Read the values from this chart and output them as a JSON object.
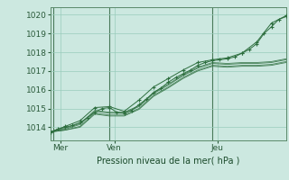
{
  "title": "",
  "xlabel": "Pression niveau de la mer( hPa )",
  "bg_color": "#cce8e0",
  "grid_color": "#99ccbb",
  "line_color": "#2d6e3e",
  "xlim": [
    0,
    96
  ],
  "ylim": [
    1013.3,
    1020.4
  ],
  "yticks": [
    1014,
    1015,
    1016,
    1017,
    1018,
    1019,
    1020
  ],
  "day_labels": [
    [
      "Mer",
      4
    ],
    [
      "Ven",
      26
    ],
    [
      "Jeu",
      68
    ]
  ],
  "day_vlines": [
    1,
    24,
    66
  ],
  "series": [
    [
      0,
      1013.75,
      3,
      1013.9,
      6,
      1014.0,
      9,
      1014.1,
      12,
      1014.25,
      15,
      1014.5,
      18,
      1014.8,
      21,
      1015.0,
      24,
      1015.05,
      27,
      1014.8,
      30,
      1014.75,
      33,
      1014.9,
      36,
      1015.2,
      39,
      1015.5,
      42,
      1015.85,
      45,
      1016.1,
      48,
      1016.4,
      51,
      1016.65,
      54,
      1016.85,
      57,
      1017.05,
      60,
      1017.3,
      63,
      1017.45,
      66,
      1017.55,
      69,
      1017.6,
      72,
      1017.65,
      75,
      1017.75,
      78,
      1017.95,
      81,
      1018.15,
      84,
      1018.45,
      87,
      1019.0,
      90,
      1019.35,
      93,
      1019.75,
      96,
      1019.9
    ],
    [
      0,
      1013.75,
      6,
      1014.05,
      12,
      1014.35,
      18,
      1015.05,
      24,
      1015.1,
      30,
      1014.85,
      36,
      1015.45,
      42,
      1016.15,
      48,
      1016.6,
      54,
      1017.05,
      60,
      1017.45,
      66,
      1017.6,
      72,
      1017.7,
      78,
      1017.95,
      84,
      1018.55,
      90,
      1019.55,
      96,
      1019.95
    ],
    [
      0,
      1013.75,
      6,
      1013.85,
      12,
      1014.05,
      18,
      1014.75,
      24,
      1014.65,
      30,
      1014.65,
      36,
      1015.0,
      42,
      1015.7,
      48,
      1016.15,
      54,
      1016.65,
      60,
      1017.05,
      66,
      1017.3,
      72,
      1017.25,
      78,
      1017.3,
      84,
      1017.3,
      90,
      1017.35,
      96,
      1017.5
    ],
    [
      0,
      1013.75,
      6,
      1013.9,
      12,
      1014.15,
      18,
      1014.85,
      24,
      1014.75,
      30,
      1014.75,
      36,
      1015.1,
      42,
      1015.8,
      48,
      1016.25,
      54,
      1016.75,
      60,
      1017.15,
      66,
      1017.4,
      72,
      1017.35,
      78,
      1017.4,
      84,
      1017.4,
      90,
      1017.45,
      96,
      1017.6
    ],
    [
      0,
      1013.75,
      6,
      1013.95,
      12,
      1014.2,
      18,
      1014.9,
      24,
      1014.8,
      30,
      1014.8,
      36,
      1015.15,
      42,
      1015.85,
      48,
      1016.3,
      54,
      1016.8,
      60,
      1017.2,
      66,
      1017.45,
      72,
      1017.4,
      78,
      1017.45,
      84,
      1017.45,
      90,
      1017.5,
      96,
      1017.65
    ],
    [
      0,
      1013.75,
      6,
      1013.85,
      12,
      1014.0,
      18,
      1014.7,
      24,
      1014.6,
      30,
      1014.6,
      36,
      1014.95,
      42,
      1015.65,
      48,
      1016.1,
      54,
      1016.6,
      60,
      1017.0,
      66,
      1017.25,
      72,
      1017.2,
      78,
      1017.25,
      84,
      1017.25,
      90,
      1017.3,
      96,
      1017.45
    ]
  ],
  "marker_series": [
    0,
    1
  ],
  "no_marker_series": [
    2,
    3,
    4,
    5
  ],
  "figsize": [
    3.2,
    2.0
  ],
  "dpi": 100
}
